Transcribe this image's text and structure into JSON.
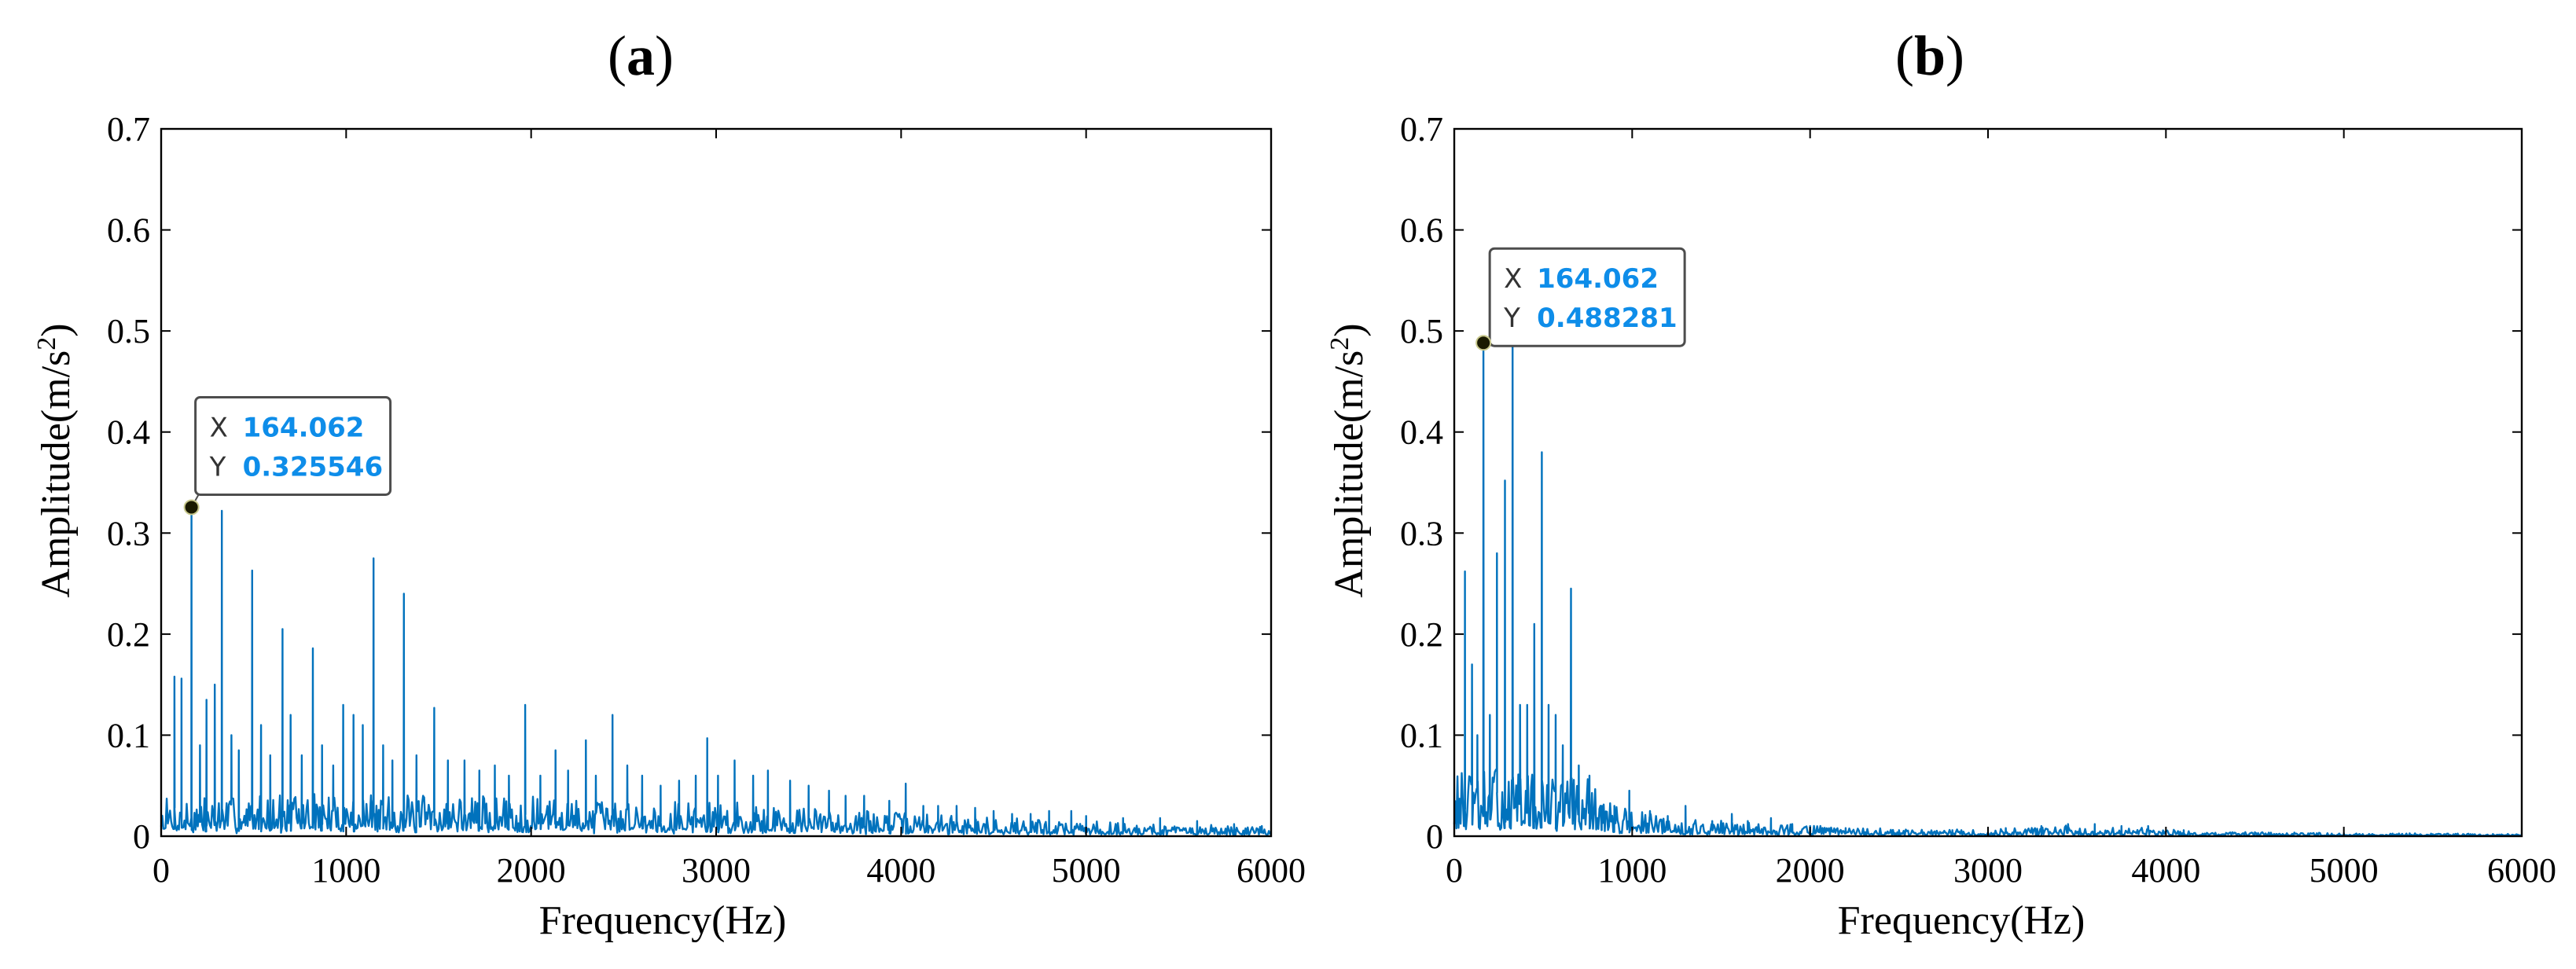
{
  "colors": {
    "series": "#0072BD",
    "axis": "#000000",
    "tooltip_value": "#0E8DE9",
    "tooltip_border": "#4D4D4D",
    "tooltip_bg": "#FFFFFF"
  },
  "chart_data": [
    {
      "type": "line",
      "title": "(a)",
      "title_parts": [
        "(",
        "a",
        ")"
      ],
      "xlabel": "Frequency(Hz)",
      "ylabel": "Amplitude(m/s2)",
      "ylabel_parts": [
        "Amplitude(m/s",
        "2",
        ")"
      ],
      "xlim": [
        0,
        6000
      ],
      "ylim": [
        0,
        0.7
      ],
      "xticks": [
        0,
        1000,
        2000,
        3000,
        4000,
        5000,
        6000
      ],
      "yticks": [
        0,
        0.1,
        0.2,
        0.3,
        0.4,
        0.5,
        0.6,
        0.7
      ],
      "xtick_labels": [
        "0",
        "1000",
        "2000",
        "3000",
        "4000",
        "5000",
        "6000"
      ],
      "ytick_labels": [
        "0",
        "0.1",
        "0.2",
        "0.3",
        "0.4",
        "0.5",
        "0.6",
        "0.7"
      ],
      "grid": false,
      "noise": {
        "seed": 7,
        "step_hz": 6,
        "envelope": [
          [
            0,
            0.018
          ],
          [
            1000,
            0.02
          ],
          [
            2000,
            0.018
          ],
          [
            3000,
            0.016
          ],
          [
            4000,
            0.011
          ],
          [
            5000,
            0.007
          ],
          [
            6000,
            0.004
          ]
        ]
      },
      "peaks": [
        [
          72,
          0.158
        ],
        [
          110,
          0.156
        ],
        [
          164.062,
          0.325546
        ],
        [
          210,
          0.09
        ],
        [
          245,
          0.135
        ],
        [
          290,
          0.15
        ],
        [
          328,
          0.322
        ],
        [
          380,
          0.1
        ],
        [
          420,
          0.085
        ],
        [
          492,
          0.263
        ],
        [
          540,
          0.11
        ],
        [
          590,
          0.08
        ],
        [
          656,
          0.205
        ],
        [
          700,
          0.12
        ],
        [
          760,
          0.08
        ],
        [
          820,
          0.186
        ],
        [
          870,
          0.09
        ],
        [
          930,
          0.07
        ],
        [
          984,
          0.13
        ],
        [
          1040,
          0.12
        ],
        [
          1090,
          0.11
        ],
        [
          1148,
          0.275
        ],
        [
          1200,
          0.09
        ],
        [
          1250,
          0.075
        ],
        [
          1312,
          0.24
        ],
        [
          1380,
          0.08
        ],
        [
          1476,
          0.127
        ],
        [
          1550,
          0.075
        ],
        [
          1640,
          0.075
        ],
        [
          1720,
          0.065
        ],
        [
          1804,
          0.07
        ],
        [
          1880,
          0.06
        ],
        [
          1968,
          0.13
        ],
        [
          2050,
          0.06
        ],
        [
          2132,
          0.085
        ],
        [
          2200,
          0.065
        ],
        [
          2296,
          0.095
        ],
        [
          2350,
          0.06
        ],
        [
          2440,
          0.12
        ],
        [
          2520,
          0.07
        ],
        [
          2600,
          0.06
        ],
        [
          2700,
          0.05
        ],
        [
          2800,
          0.055
        ],
        [
          2890,
          0.06
        ],
        [
          2952,
          0.097
        ],
        [
          3010,
          0.06
        ],
        [
          3100,
          0.075
        ],
        [
          3200,
          0.06
        ],
        [
          3280,
          0.065
        ],
        [
          3400,
          0.055
        ],
        [
          3500,
          0.05
        ],
        [
          3610,
          0.045
        ],
        [
          3700,
          0.04
        ],
        [
          3800,
          0.04
        ],
        [
          3936,
          0.035
        ],
        [
          4025,
          0.052
        ],
        [
          4120,
          0.03
        ],
        [
          4200,
          0.03
        ],
        [
          4300,
          0.03
        ],
        [
          4400,
          0.028
        ],
        [
          4500,
          0.025
        ],
        [
          4600,
          0.022
        ],
        [
          4700,
          0.022
        ],
        [
          4800,
          0.025
        ],
        [
          4920,
          0.025
        ],
        [
          5000,
          0.02
        ],
        [
          5200,
          0.018
        ],
        [
          5400,
          0.018
        ],
        [
          5600,
          0.015
        ],
        [
          5800,
          0.012
        ],
        [
          5950,
          0.01
        ]
      ],
      "datatip": {
        "x": 164.062,
        "y": 0.325546,
        "x_label": "X",
        "y_label": "Y",
        "x_text": "164.062",
        "y_text": "0.325546"
      }
    },
    {
      "type": "line",
      "title": "(b)",
      "title_parts": [
        "(",
        "b",
        ")"
      ],
      "xlabel": "Frequency(Hz)",
      "ylabel": "Amplitude(m/s2)",
      "ylabel_parts": [
        "Amplitude(m/s",
        "2",
        ")"
      ],
      "xlim": [
        0,
        6000
      ],
      "ylim": [
        0,
        0.7
      ],
      "xticks": [
        0,
        1000,
        2000,
        3000,
        4000,
        5000,
        6000
      ],
      "yticks": [
        0,
        0.1,
        0.2,
        0.3,
        0.4,
        0.5,
        0.6,
        0.7
      ],
      "xtick_labels": [
        "0",
        "1000",
        "2000",
        "3000",
        "4000",
        "5000",
        "6000"
      ],
      "ytick_labels": [
        "0",
        "0.1",
        "0.2",
        "0.3",
        "0.4",
        "0.5",
        "0.6",
        "0.7"
      ],
      "grid": false,
      "noise": {
        "seed": 13,
        "step_hz": 6,
        "envelope": [
          [
            0,
            0.03
          ],
          [
            700,
            0.03
          ],
          [
            900,
            0.015
          ],
          [
            1200,
            0.008
          ],
          [
            1600,
            0.007
          ],
          [
            2000,
            0.005
          ],
          [
            2500,
            0.003
          ],
          [
            3000,
            0.003
          ],
          [
            3400,
            0.005
          ],
          [
            3800,
            0.005
          ],
          [
            4200,
            0.002
          ],
          [
            5000,
            0.0015
          ],
          [
            6000,
            0.001
          ]
        ]
      },
      "peaks": [
        [
          60,
          0.262
        ],
        [
          100,
          0.17
        ],
        [
          130,
          0.1
        ],
        [
          164.062,
          0.488281
        ],
        [
          200,
          0.12
        ],
        [
          240,
          0.28
        ],
        [
          285,
          0.352
        ],
        [
          328,
          0.51
        ],
        [
          370,
          0.13
        ],
        [
          410,
          0.13
        ],
        [
          450,
          0.21
        ],
        [
          492,
          0.38
        ],
        [
          530,
          0.13
        ],
        [
          570,
          0.12
        ],
        [
          610,
          0.09
        ],
        [
          656,
          0.245
        ],
        [
          700,
          0.07
        ],
        [
          760,
          0.06
        ],
        [
          830,
          0.03
        ],
        [
          900,
          0.03
        ],
        [
          984,
          0.045
        ],
        [
          1100,
          0.025
        ],
        [
          1200,
          0.02
        ],
        [
          1300,
          0.03
        ],
        [
          1450,
          0.015
        ],
        [
          1560,
          0.022
        ],
        [
          1650,
          0.015
        ],
        [
          1780,
          0.018
        ],
        [
          1900,
          0.012
        ],
        [
          2000,
          0.01
        ],
        [
          2200,
          0.008
        ],
        [
          2500,
          0.006
        ],
        [
          2800,
          0.006
        ],
        [
          3100,
          0.008
        ],
        [
          3300,
          0.01
        ],
        [
          3450,
          0.012
        ],
        [
          3600,
          0.012
        ],
        [
          3750,
          0.01
        ],
        [
          3900,
          0.01
        ],
        [
          4100,
          0.006
        ],
        [
          4500,
          0.004
        ],
        [
          5000,
          0.003
        ],
        [
          5500,
          0.002
        ]
      ],
      "datatip": {
        "x": 164.062,
        "y": 0.488281,
        "x_label": "X",
        "y_label": "Y",
        "x_text": "164.062",
        "y_text": "0.488281"
      }
    }
  ]
}
